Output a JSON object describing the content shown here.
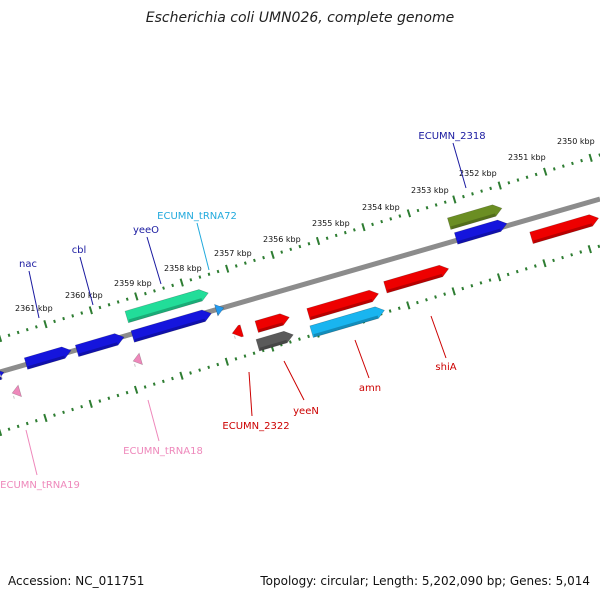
{
  "title": "Escherichia coli UMN026, complete genome",
  "footer": {
    "accession": "Accession: NC_011751",
    "summary": "Topology: circular; Length: 5,202,090 bp; Genes: 5,014"
  },
  "colors": {
    "backbone": "#8c8c8c",
    "ruler": "#2e7d32",
    "red": "#ee0000",
    "blue": "#1515dd",
    "cyan": "#19b5f0",
    "teal": "#22dd99",
    "olive": "#6b8e23",
    "gray": "#5a5a5a",
    "pink": "#ee88bb",
    "lightblue": "#2299ee"
  },
  "ruler_labels": [
    "2350 kbp",
    "2351 kbp",
    "2352 kbp",
    "2353 kbp",
    "2354 kbp",
    "2355 kbp",
    "2356 kbp",
    "2357 kbp",
    "2358 kbp",
    "2359 kbp",
    "2360 kbp",
    "2361 kbp"
  ],
  "gene_labels": [
    {
      "text": "ECUMN_2318",
      "color": "#1a1aa0"
    },
    {
      "text": "ECUMN_tRNA72",
      "color": "#22aadd"
    },
    {
      "text": "yeeO",
      "color": "#1a1aa0"
    },
    {
      "text": "cbl",
      "color": "#1a1aa0"
    },
    {
      "text": "nac",
      "color": "#1a1aa0"
    },
    {
      "text": "shiA",
      "color": "#cc0000"
    },
    {
      "text": "amn",
      "color": "#cc0000"
    },
    {
      "text": "yeeN",
      "color": "#cc0000"
    },
    {
      "text": "ECUMN_2322",
      "color": "#cc0000"
    },
    {
      "text": "ECUMN_tRNA18",
      "color": "#ee88bb"
    },
    {
      "text": "ECUMN_tRNA19",
      "color": "#ee88bb"
    }
  ]
}
